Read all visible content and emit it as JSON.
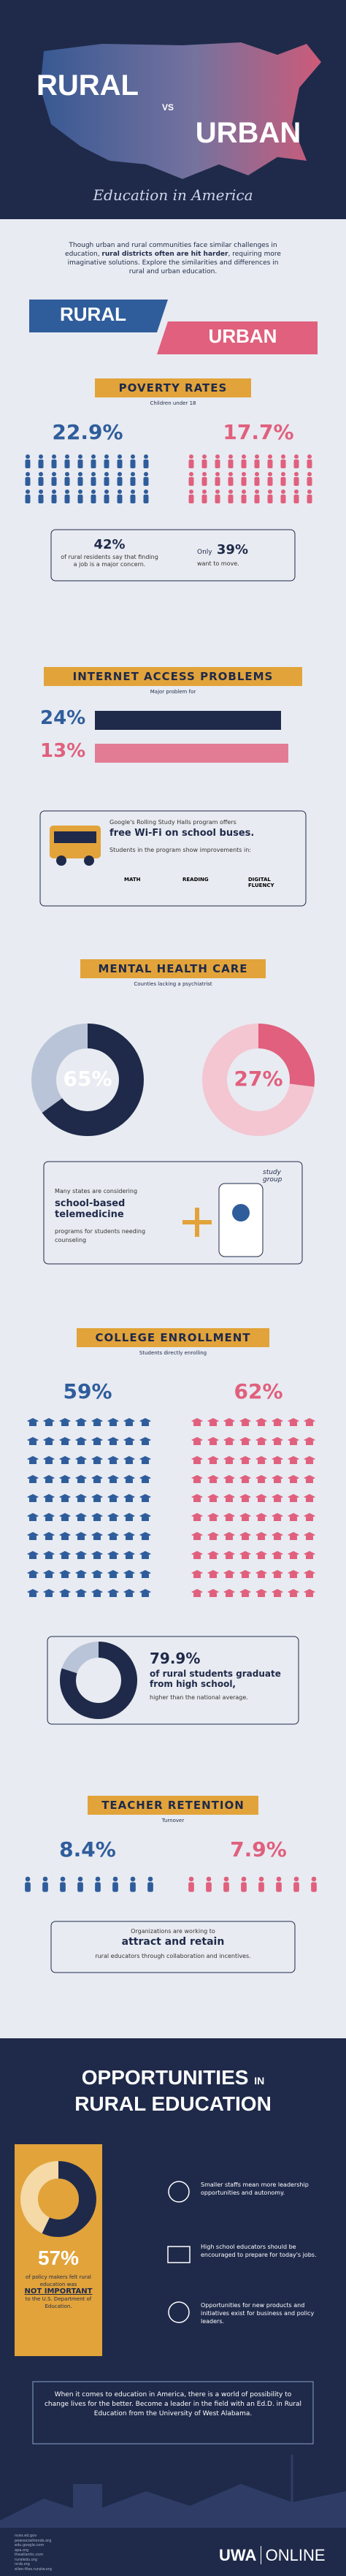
{
  "header": {
    "title_rural": "RURAL",
    "vs": "VS",
    "title_urban": "URBAN",
    "subtitle": "Education in America"
  },
  "intro": {
    "text_1": "Though urban and rural communities face similar challenges in education, ",
    "emphasis": "rural districts often are hit harder",
    "text_2": ", requiring more imaginative solutions. Explore the similarities and differences in rural and urban education."
  },
  "labels": {
    "rural": "RURAL",
    "urban": "URBAN"
  },
  "poverty": {
    "title": "POVERTY RATES",
    "subtitle": "Children under 18",
    "rural": "22.9%",
    "urban": "17.7%",
    "fact_1": {
      "value": "42%",
      "text": "of rural residents say that finding a job is a major concern."
    },
    "fact_2": {
      "prefix": "Only",
      "value": "39%",
      "text": "want to move."
    }
  },
  "internet": {
    "title": "INTERNET ACCESS PROBLEMS",
    "subtitle": "Major problem for",
    "rural": "24%",
    "urban": "13%",
    "callout": {
      "intro": "Google's Rolling Study Halls program offers",
      "highlight": "free Wi-Fi on school buses.",
      "note": "Students in the program show improvements in:",
      "skills": [
        "MATH",
        "READING",
        "DIGITAL FLUENCY"
      ]
    }
  },
  "mental_health": {
    "title": "MENTAL HEALTH CARE",
    "subtitle": "Counties lacking a psychiatrist",
    "rural": {
      "value": 65,
      "label": "65%"
    },
    "urban": {
      "value": 27,
      "label": "27%"
    },
    "callout": {
      "intro": "Many states are considering",
      "highlight": "school-based telemedicine",
      "text": "programs for students needing counseling",
      "icon_text": "study group"
    }
  },
  "college": {
    "title": "COLLEGE ENROLLMENT",
    "subtitle": "Students directly enrolling",
    "rural": "59%",
    "urban": "62%",
    "callout": {
      "stat": {
        "value": 79.9,
        "label": "79.9%"
      },
      "highlight": "of rural students graduate from high school,",
      "text": "higher than the national average."
    }
  },
  "teacher": {
    "title": "TEACHER RETENTION",
    "subtitle": "Turnover",
    "rural": "8.4%",
    "urban": "7.9%",
    "callout": {
      "intro": "Organizations are working to",
      "highlight": "attract and retain",
      "text": "rural educators through collaboration and incentives."
    }
  },
  "opportunities": {
    "title_1": "OPPORTUNITIES",
    "title_in": "IN",
    "title_2": "RURAL EDUCATION",
    "stat": {
      "value": 57,
      "label": "57%"
    },
    "stat_text_1": "of policy makers felt rural education was",
    "stat_highlight": "NOT IMPORTANT",
    "stat_text_2": "to the U.S. Department of Education.",
    "items": [
      "Smaller staffs mean more leadership opportunities and autonomy.",
      "High school educators should be encouraged to prepare for today's jobs.",
      "Opportunities for new products and initiatives exist for business and policy leaders."
    ],
    "closing": "When it comes to education in America, there is a world of possibility to change lives for the better. Become a leader in the field with an Ed.D. in Rural Education from the University of West Alabama."
  },
  "footer": {
    "sources": [
      "nces.ed.gov",
      "pewsocialtrends.org",
      "edu.google.com",
      "apa.org",
      "theatlantic.com",
      "ruraledu.org",
      "nrsb.org",
      "ellen-files.ruralw.org"
    ],
    "logo_1": "UWA",
    "logo_2": "ONLINE"
  }
}
